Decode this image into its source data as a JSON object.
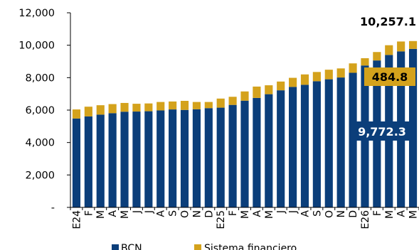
{
  "chart_data": {
    "type": "bar",
    "stacked": true,
    "categories": [
      "E24",
      "F",
      "M",
      "A",
      "M",
      "J",
      "J",
      "A",
      "S",
      "O",
      "N",
      "D",
      "E25",
      "F",
      "M",
      "A",
      "M",
      "J",
      "J",
      "A",
      "S",
      "O",
      "N",
      "D",
      "E26",
      "F",
      "M",
      "A",
      "M"
    ],
    "series": [
      {
        "name": "BCN",
        "color": "#0B3E7A",
        "values": [
          5480,
          5610,
          5720,
          5810,
          5900,
          5910,
          5930,
          5980,
          6040,
          6010,
          6050,
          6120,
          6150,
          6320,
          6580,
          6750,
          6980,
          7220,
          7430,
          7560,
          7780,
          7900,
          8010,
          8300,
          8750,
          9060,
          9400,
          9620,
          9772.3
        ]
      },
      {
        "name": "Sistema financiero",
        "color": "#D4A21C",
        "values": [
          560,
          600,
          580,
          560,
          540,
          480,
          480,
          520,
          490,
          560,
          450,
          380,
          560,
          500,
          570,
          700,
          550,
          540,
          560,
          640,
          570,
          590,
          560,
          580,
          450,
          520,
          600,
          610,
          484.8
        ]
      }
    ],
    "ylim": [
      0,
      12000
    ],
    "yticks": [
      {
        "value": 0,
        "label": "-"
      },
      {
        "value": 2000,
        "label": "2,000"
      },
      {
        "value": 4000,
        "label": "4,000"
      },
      {
        "value": 6000,
        "label": "6,000"
      },
      {
        "value": 8000,
        "label": "8,000"
      },
      {
        "value": 10000,
        "label": "10,000"
      },
      {
        "value": 12000,
        "label": "12,000"
      }
    ],
    "annotations": {
      "total": "10,257.1",
      "sistema_financiero": "484.8",
      "bcn": "9,772.3"
    },
    "grid": false,
    "legend_position": "bottom"
  }
}
